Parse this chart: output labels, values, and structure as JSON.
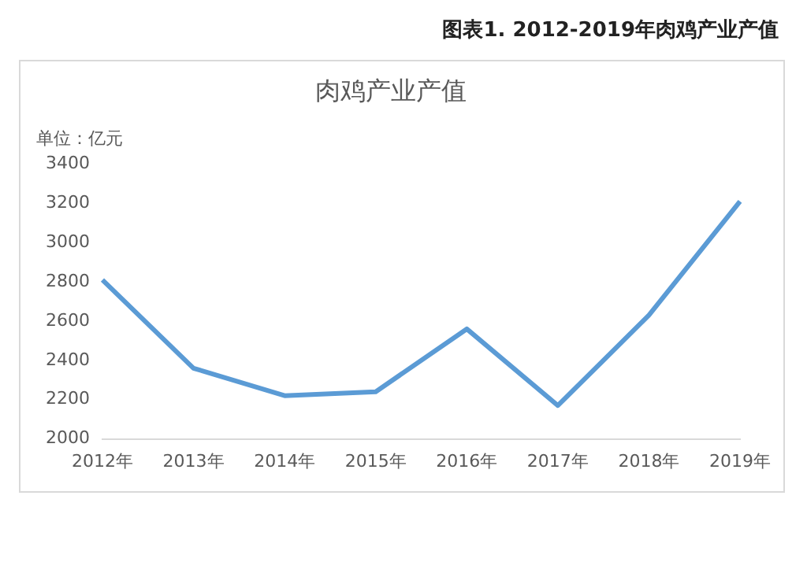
{
  "chart_data": {
    "type": "line",
    "title": "图表1. 2012-2019年肉鸡产业产值",
    "subtitle": "肉鸡产业产值",
    "ylabel": "单位：亿元",
    "categories": [
      "2012年",
      "2013年",
      "2014年",
      "2015年",
      "2016年",
      "2017年",
      "2018年",
      "2019年"
    ],
    "series": [
      {
        "color": "#5b9bd5",
        "values": [
          2810,
          2360,
          2220,
          2240,
          2560,
          2170,
          2630,
          3210
        ]
      }
    ],
    "ylim": [
      2000,
      3400
    ],
    "yticks": [
      2000,
      2200,
      2400,
      2600,
      2800,
      3000,
      3200,
      3400
    ],
    "grid": false,
    "legend": false,
    "marker": "none",
    "line_style": "solid"
  }
}
